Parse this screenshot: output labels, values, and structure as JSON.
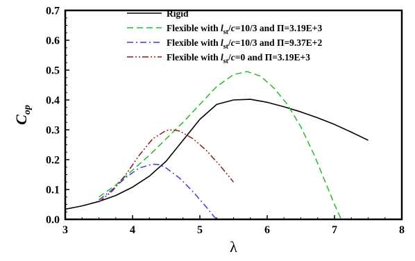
{
  "chart_data": {
    "type": "line",
    "title": "",
    "xlabel": "λ",
    "ylabel_main": "C",
    "ylabel_sub": "op",
    "xlim": [
      3,
      8
    ],
    "ylim": [
      0,
      0.7
    ],
    "xticks": [
      "3",
      "4",
      "5",
      "6",
      "7",
      "8"
    ],
    "yticks": [
      "0.0",
      "0.1",
      "0.2",
      "0.3",
      "0.4",
      "0.5",
      "0.6",
      "0.7"
    ],
    "grid": false,
    "legend_position": "top-center",
    "series": [
      {
        "name": "Rigid",
        "legend": [
          {
            "t": "Rigid"
          }
        ],
        "color": "#000000",
        "dash": "solid",
        "x": [
          3.0,
          3.25,
          3.5,
          3.75,
          4.0,
          4.25,
          4.5,
          4.75,
          5.0,
          5.25,
          5.5,
          5.75,
          6.0,
          6.25,
          6.5,
          6.75,
          7.0,
          7.25,
          7.5
        ],
        "y": [
          0.034,
          0.045,
          0.06,
          0.08,
          0.108,
          0.145,
          0.195,
          0.265,
          0.335,
          0.385,
          0.4,
          0.402,
          0.392,
          0.377,
          0.36,
          0.34,
          0.318,
          0.292,
          0.265
        ]
      },
      {
        "name": "Flexible with lst/c=10/3 and Π=3.19E+3",
        "legend": [
          {
            "t": "Flexible with "
          },
          {
            "t": "l",
            "i": true
          },
          {
            "t": "st",
            "sub": true
          },
          {
            "t": "/"
          },
          {
            "t": "c",
            "i": true
          },
          {
            "t": "=10/3 and Π=3.19E+3"
          }
        ],
        "color": "#22bb22",
        "dash": "dashed",
        "x": [
          3.5,
          3.75,
          4.0,
          4.25,
          4.5,
          4.75,
          5.0,
          5.25,
          5.5,
          5.7,
          5.9,
          6.1,
          6.3,
          6.5,
          6.7,
          6.9,
          7.0,
          7.1
        ],
        "y": [
          0.075,
          0.115,
          0.165,
          0.215,
          0.27,
          0.325,
          0.385,
          0.445,
          0.485,
          0.495,
          0.48,
          0.44,
          0.385,
          0.31,
          0.215,
          0.105,
          0.05,
          0.0
        ]
      },
      {
        "name": "Flexible with lst/c=10/3 and Π=9.37E+2",
        "legend": [
          {
            "t": "Flexible with "
          },
          {
            "t": "l",
            "i": true
          },
          {
            "t": "st",
            "sub": true
          },
          {
            "t": "/"
          },
          {
            "t": "c",
            "i": true
          },
          {
            "t": "=10/3 and Π=9.37E+2"
          }
        ],
        "color": "#3b3bd6",
        "dash": "dashdot",
        "x": [
          3.5,
          3.7,
          3.9,
          4.1,
          4.3,
          4.4,
          4.5,
          4.7,
          4.9,
          5.1,
          5.2,
          5.25
        ],
        "y": [
          0.065,
          0.1,
          0.14,
          0.172,
          0.185,
          0.183,
          0.172,
          0.138,
          0.092,
          0.04,
          0.012,
          0.0
        ]
      },
      {
        "name": "Flexible with lst/c=0 and Π=3.19E+3",
        "legend": [
          {
            "t": "Flexible with "
          },
          {
            "t": "l",
            "i": true
          },
          {
            "t": "st",
            "sub": true
          },
          {
            "t": "/"
          },
          {
            "t": "c",
            "i": true
          },
          {
            "t": "=0 and Π=3.19E+3"
          }
        ],
        "color": "#8b1a1a",
        "dash": "dashdotdot",
        "x": [
          3.5,
          3.7,
          3.9,
          4.1,
          4.3,
          4.5,
          4.6,
          4.7,
          4.9,
          5.1,
          5.3,
          5.5
        ],
        "y": [
          0.058,
          0.095,
          0.15,
          0.215,
          0.27,
          0.298,
          0.3,
          0.296,
          0.27,
          0.23,
          0.18,
          0.125
        ]
      }
    ]
  }
}
